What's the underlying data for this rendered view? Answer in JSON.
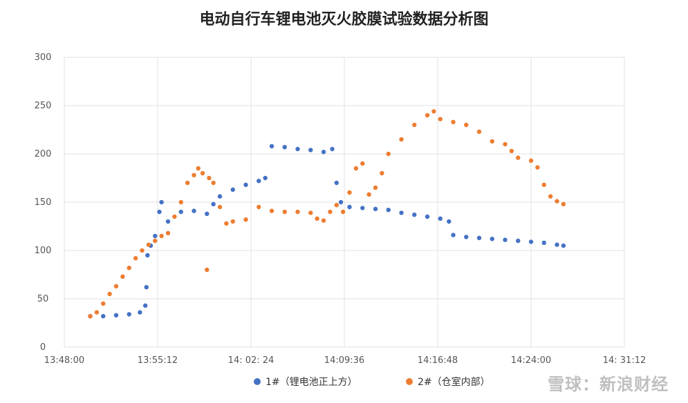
{
  "chart_data": {
    "type": "scatter",
    "title": "电动自行车锂电池灭火胶膜试验数据分析图",
    "xlabel": "",
    "ylabel": "",
    "x_ticks": [
      "13:48:00",
      "13:55:12",
      "14: 02: 24",
      "14:09:36",
      "14:16:48",
      "14:24:00",
      "14: 31:12"
    ],
    "xlim": [
      "13:48:00",
      "14:31:12"
    ],
    "y_ticks": [
      "0",
      "50",
      "100",
      "150",
      "200",
      "250",
      "300"
    ],
    "ylim": [
      0,
      300
    ],
    "grid": true,
    "legend_position": "bottom",
    "series": [
      {
        "name": "1#（锂电池正上方）",
        "color": "#4472C4",
        "points": [
          [
            "13:50:00",
            32
          ],
          [
            "13:51:00",
            32
          ],
          [
            "13:52:00",
            33
          ],
          [
            "13:53:00",
            34
          ],
          [
            "13:53:50",
            36
          ],
          [
            "13:54:15",
            43
          ],
          [
            "13:54:20",
            62
          ],
          [
            "13:54:25",
            95
          ],
          [
            "13:54:40",
            105
          ],
          [
            "13:55:00",
            115
          ],
          [
            "13:55:20",
            140
          ],
          [
            "13:55:30",
            150
          ],
          [
            "13:56:00",
            130
          ],
          [
            "13:57:00",
            140
          ],
          [
            "13:58:00",
            141
          ],
          [
            "13:59:00",
            138
          ],
          [
            "13:59:30",
            148
          ],
          [
            "14:00:00",
            156
          ],
          [
            "14:01:00",
            163
          ],
          [
            "14:02:00",
            168
          ],
          [
            "14:03:00",
            172
          ],
          [
            "14:03:30",
            175
          ],
          [
            "14:04:00",
            208
          ],
          [
            "14:05:00",
            207
          ],
          [
            "14:06:00",
            205
          ],
          [
            "14:07:00",
            204
          ],
          [
            "14:08:00",
            202
          ],
          [
            "14:08:40",
            205
          ],
          [
            "14:09:00",
            170
          ],
          [
            "14:09:20",
            150
          ],
          [
            "14:10:00",
            145
          ],
          [
            "14:11:00",
            144
          ],
          [
            "14:12:00",
            143
          ],
          [
            "14:13:00",
            142
          ],
          [
            "14:14:00",
            139
          ],
          [
            "14:15:00",
            137
          ],
          [
            "14:16:00",
            135
          ],
          [
            "14:17:00",
            133
          ],
          [
            "14:17:40",
            130
          ],
          [
            "14:18:00",
            116
          ],
          [
            "14:19:00",
            114
          ],
          [
            "14:20:00",
            113
          ],
          [
            "14:21:00",
            112
          ],
          [
            "14:22:00",
            111
          ],
          [
            "14:23:00",
            110
          ],
          [
            "14:24:00",
            109
          ],
          [
            "14:25:00",
            108
          ],
          [
            "14:26:00",
            106
          ],
          [
            "14:26:30",
            105
          ]
        ]
      },
      {
        "name": "2#（仓室内部）",
        "color": "#ED7D31",
        "points": [
          [
            "13:50:00",
            32
          ],
          [
            "13:50:30",
            36
          ],
          [
            "13:51:00",
            45
          ],
          [
            "13:51:30",
            55
          ],
          [
            "13:52:00",
            63
          ],
          [
            "13:52:30",
            73
          ],
          [
            "13:53:00",
            82
          ],
          [
            "13:53:30",
            92
          ],
          [
            "13:54:00",
            100
          ],
          [
            "13:54:30",
            106
          ],
          [
            "13:55:00",
            110
          ],
          [
            "13:55:30",
            115
          ],
          [
            "13:56:00",
            118
          ],
          [
            "13:56:30",
            135
          ],
          [
            "13:57:00",
            150
          ],
          [
            "13:57:30",
            170
          ],
          [
            "13:58:00",
            178
          ],
          [
            "13:58:20",
            185
          ],
          [
            "13:58:40",
            180
          ],
          [
            "13:59:10",
            175
          ],
          [
            "13:59:30",
            170
          ],
          [
            "13:59:00",
            80
          ],
          [
            "14:00:00",
            145
          ],
          [
            "14:00:30",
            128
          ],
          [
            "14:01:00",
            130
          ],
          [
            "14:02:00",
            132
          ],
          [
            "14:03:00",
            145
          ],
          [
            "14:04:00",
            141
          ],
          [
            "14:05:00",
            140
          ],
          [
            "14:06:00",
            140
          ],
          [
            "14:07:00",
            139
          ],
          [
            "14:07:30",
            133
          ],
          [
            "14:08:00",
            131
          ],
          [
            "14:08:30",
            140
          ],
          [
            "14:09:00",
            147
          ],
          [
            "14:09:30",
            140
          ],
          [
            "14:10:00",
            160
          ],
          [
            "14:10:30",
            185
          ],
          [
            "14:11:00",
            190
          ],
          [
            "14:11:30",
            158
          ],
          [
            "14:12:00",
            165
          ],
          [
            "14:12:30",
            180
          ],
          [
            "14:13:00",
            200
          ],
          [
            "14:14:00",
            215
          ],
          [
            "14:15:00",
            230
          ],
          [
            "14:16:00",
            240
          ],
          [
            "14:16:30",
            244
          ],
          [
            "14:17:00",
            236
          ],
          [
            "14:18:00",
            233
          ],
          [
            "14:19:00",
            230
          ],
          [
            "14:20:00",
            223
          ],
          [
            "14:21:00",
            213
          ],
          [
            "14:22:00",
            210
          ],
          [
            "14:22:30",
            203
          ],
          [
            "14:23:00",
            196
          ],
          [
            "14:24:00",
            193
          ],
          [
            "14:24:30",
            186
          ],
          [
            "14:25:00",
            168
          ],
          [
            "14:25:30",
            156
          ],
          [
            "14:26:00",
            151
          ],
          [
            "14:26:30",
            148
          ]
        ]
      }
    ]
  },
  "watermark": "雪球：新浪财经"
}
